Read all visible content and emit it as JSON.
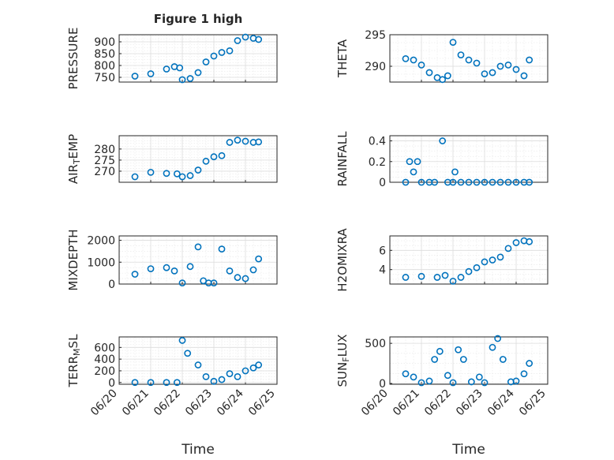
{
  "figure": {
    "title": "Figure 1 high",
    "xlabel": "Time",
    "marker_color": "#0072bd"
  },
  "chart_data": [
    {
      "type": "scatter",
      "ylabel": "PRESSURE",
      "ylim": [
        730,
        930
      ],
      "yticks": [
        750,
        800,
        850,
        900
      ],
      "xticks": [
        "06/20",
        "06/21",
        "06/22",
        "06/23",
        "06/24",
        "06/25"
      ],
      "x": [
        "06/20 12:00",
        "06/21 00:00",
        "06/21 12:00",
        "06/21 18:00",
        "06/21 22:00",
        "06/22 00:00",
        "06/22 06:00",
        "06/22 12:00",
        "06/22 18:00",
        "06/23 00:00",
        "06/23 06:00",
        "06/23 12:00",
        "06/23 18:00",
        "06/24 00:00",
        "06/24 06:00",
        "06/24 10:00"
      ],
      "y": [
        755,
        765,
        785,
        795,
        790,
        740,
        745,
        770,
        815,
        840,
        855,
        862,
        905,
        920,
        915,
        910
      ]
    },
    {
      "type": "scatter",
      "ylabel": "THETA",
      "ylim": [
        287.5,
        295
      ],
      "yticks": [
        290,
        295
      ],
      "xticks": [
        "06/20",
        "06/21",
        "06/22",
        "06/23",
        "06/24",
        "06/25"
      ],
      "x": [
        "06/20 12:00",
        "06/20 18:00",
        "06/21 00:00",
        "06/21 06:00",
        "06/21 12:00",
        "06/21 16:00",
        "06/21 20:00",
        "06/22 00:00",
        "06/22 06:00",
        "06/22 12:00",
        "06/22 18:00",
        "06/23 00:00",
        "06/23 06:00",
        "06/23 12:00",
        "06/23 18:00",
        "06/24 00:00",
        "06/24 06:00",
        "06/24 10:00"
      ],
      "y": [
        291.2,
        291.0,
        290.2,
        289.0,
        288.2,
        287.9,
        288.5,
        293.8,
        291.8,
        291.0,
        290.5,
        288.8,
        289.0,
        290.0,
        290.2,
        289.5,
        288.5,
        291.0
      ]
    },
    {
      "type": "scatter",
      "ylabel": "AIR_TEMP",
      "ylim": [
        265,
        286
      ],
      "yticks": [
        270,
        275,
        280
      ],
      "xticks": [
        "06/20",
        "06/21",
        "06/22",
        "06/23",
        "06/24",
        "06/25"
      ],
      "x": [
        "06/20 12:00",
        "06/21 00:00",
        "06/21 12:00",
        "06/21 20:00",
        "06/22 00:00",
        "06/22 06:00",
        "06/22 12:00",
        "06/22 18:00",
        "06/23 00:00",
        "06/23 06:00",
        "06/23 12:00",
        "06/23 18:00",
        "06/24 00:00",
        "06/24 06:00",
        "06/24 10:00"
      ],
      "y": [
        267.5,
        269.5,
        269.0,
        268.8,
        267.5,
        268.0,
        270.5,
        274.5,
        276.5,
        277.0,
        283.0,
        284.0,
        283.5,
        283.0,
        283.2
      ]
    },
    {
      "type": "scatter",
      "ylabel": "RAINFALL",
      "ylim": [
        0,
        0.45
      ],
      "yticks": [
        0,
        0.2,
        0.4
      ],
      "xticks": [
        "06/20",
        "06/21",
        "06/22",
        "06/23",
        "06/24",
        "06/25"
      ],
      "x": [
        "06/20 12:00",
        "06/20 15:00",
        "06/20 18:00",
        "06/20 21:00",
        "06/21 00:00",
        "06/21 06:00",
        "06/21 10:00",
        "06/21 16:00",
        "06/21 20:00",
        "06/22 00:00",
        "06/22 01:30",
        "06/22 06:00",
        "06/22 12:00",
        "06/22 18:00",
        "06/23 00:00",
        "06/23 06:00",
        "06/23 12:00",
        "06/23 18:00",
        "06/24 00:00",
        "06/24 06:00",
        "06/24 10:00"
      ],
      "y": [
        0,
        0.2,
        0.1,
        0.2,
        0,
        0,
        0,
        0.4,
        0,
        0,
        0.1,
        0,
        0,
        0,
        0,
        0,
        0,
        0,
        0,
        0,
        0
      ]
    },
    {
      "type": "scatter",
      "ylabel": "MIXDEPTH",
      "ylim": [
        0,
        2200
      ],
      "yticks": [
        0,
        1000,
        2000
      ],
      "xticks": [
        "06/20",
        "06/21",
        "06/22",
        "06/23",
        "06/24",
        "06/25"
      ],
      "x": [
        "06/20 12:00",
        "06/21 00:00",
        "06/21 12:00",
        "06/21 18:00",
        "06/22 00:00",
        "06/22 06:00",
        "06/22 12:00",
        "06/22 16:00",
        "06/22 20:00",
        "06/23 00:00",
        "06/23 06:00",
        "06/23 12:00",
        "06/23 18:00",
        "06/24 00:00",
        "06/24 06:00",
        "06/24 10:00"
      ],
      "y": [
        450,
        700,
        750,
        600,
        50,
        800,
        1700,
        150,
        50,
        50,
        1600,
        600,
        300,
        250,
        650,
        1150
      ]
    },
    {
      "type": "scatter",
      "ylabel": "H2OMIXRA",
      "ylim": [
        2.5,
        7.5
      ],
      "yticks": [
        4,
        6
      ],
      "xticks": [
        "06/20",
        "06/21",
        "06/22",
        "06/23",
        "06/24",
        "06/25"
      ],
      "x": [
        "06/20 12:00",
        "06/21 00:00",
        "06/21 12:00",
        "06/21 18:00",
        "06/22 00:00",
        "06/22 06:00",
        "06/22 12:00",
        "06/22 18:00",
        "06/23 00:00",
        "06/23 06:00",
        "06/23 12:00",
        "06/23 18:00",
        "06/24 00:00",
        "06/24 06:00",
        "06/24 10:00"
      ],
      "y": [
        3.2,
        3.3,
        3.2,
        3.4,
        2.8,
        3.2,
        3.8,
        4.2,
        4.8,
        5.0,
        5.3,
        6.2,
        6.8,
        7.0,
        6.9
      ]
    },
    {
      "type": "scatter",
      "ylabel": "TERR_MSL",
      "ylim": [
        -30,
        780
      ],
      "yticks": [
        0,
        200,
        400,
        600
      ],
      "xticks": [
        "06/20",
        "06/21",
        "06/22",
        "06/23",
        "06/24",
        "06/25"
      ],
      "x": [
        "06/20 12:00",
        "06/21 00:00",
        "06/21 12:00",
        "06/21 20:00",
        "06/22 00:00",
        "06/22 04:00",
        "06/22 12:00",
        "06/22 18:00",
        "06/23 00:00",
        "06/23 06:00",
        "06/23 12:00",
        "06/23 18:00",
        "06/24 00:00",
        "06/24 06:00",
        "06/24 10:00"
      ],
      "y": [
        0,
        0,
        0,
        0,
        720,
        500,
        300,
        100,
        20,
        50,
        150,
        100,
        200,
        250,
        300
      ]
    },
    {
      "type": "scatter",
      "ylabel": "SUN_FLUX",
      "ylim": [
        -10,
        580
      ],
      "yticks": [
        0,
        500
      ],
      "xticks": [
        "06/20",
        "06/21",
        "06/22",
        "06/23",
        "06/24",
        "06/25"
      ],
      "x": [
        "06/20 12:00",
        "06/20 18:00",
        "06/21 00:00",
        "06/21 06:00",
        "06/21 10:00",
        "06/21 14:00",
        "06/21 20:00",
        "06/22 00:00",
        "06/22 04:00",
        "06/22 08:00",
        "06/22 14:00",
        "06/22 20:00",
        "06/23 00:00",
        "06/23 06:00",
        "06/23 10:00",
        "06/23 14:00",
        "06/23 20:00",
        "06/24 00:00",
        "06/24 06:00",
        "06/24 10:00"
      ],
      "y": [
        120,
        80,
        10,
        30,
        300,
        400,
        100,
        10,
        420,
        300,
        20,
        80,
        10,
        450,
        560,
        300,
        20,
        30,
        120,
        250
      ]
    }
  ]
}
